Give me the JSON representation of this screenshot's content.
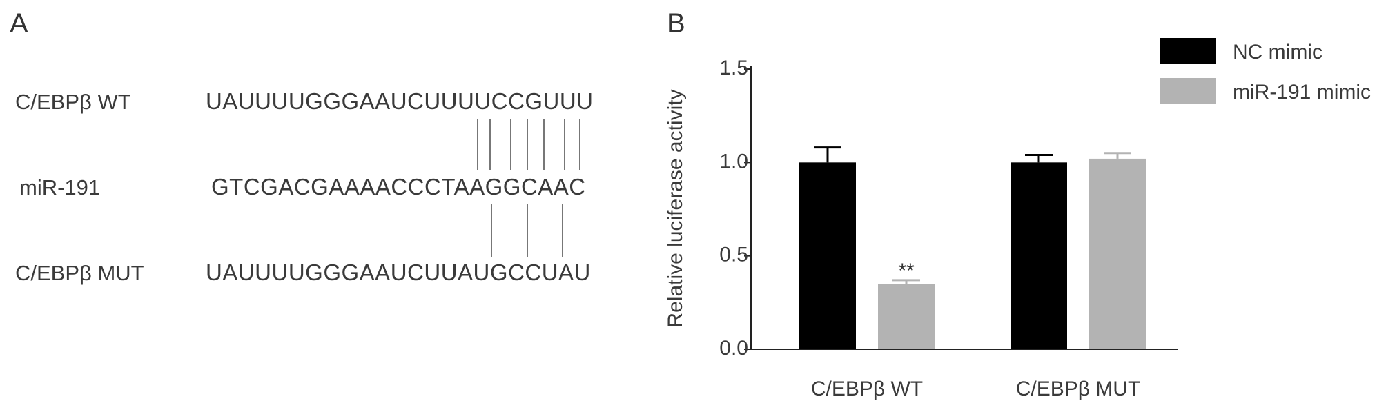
{
  "panels": {
    "a_label": "A",
    "b_label": "B"
  },
  "sequences": {
    "wt": {
      "label": "C/EBPβ WT",
      "seq": "UAUUUUGGGAAUCUUUUCCGUUU"
    },
    "mir": {
      "label": "miR-191",
      "seq": "GTCGACGAAAACCCTAAGGCAAC"
    },
    "mut": {
      "label": "C/EBPβ MUT",
      "seq": "UAUUUUGGGAAUCUUAUGCCUAU"
    }
  },
  "chart_data": {
    "type": "bar",
    "categories": [
      "C/EBPβ WT",
      "C/EBPβ MUT"
    ],
    "series": [
      {
        "name": "NC mimic",
        "color": "#000000",
        "values": [
          1.0,
          1.0
        ],
        "errors": [
          0.08,
          0.04
        ]
      },
      {
        "name": "miR-191 mimic",
        "color": "#b3b3b3",
        "values": [
          0.35,
          1.02
        ],
        "errors": [
          0.02,
          0.03
        ]
      }
    ],
    "ylabel": "Relative luciferase activity",
    "ylim": [
      0,
      1.5
    ],
    "yticks": [
      "0.0",
      "0.5",
      "1.0",
      "1.5"
    ],
    "annotations": [
      {
        "category": 0,
        "series": 1,
        "text": "**"
      }
    ],
    "grid": false,
    "legend": "top-right"
  }
}
